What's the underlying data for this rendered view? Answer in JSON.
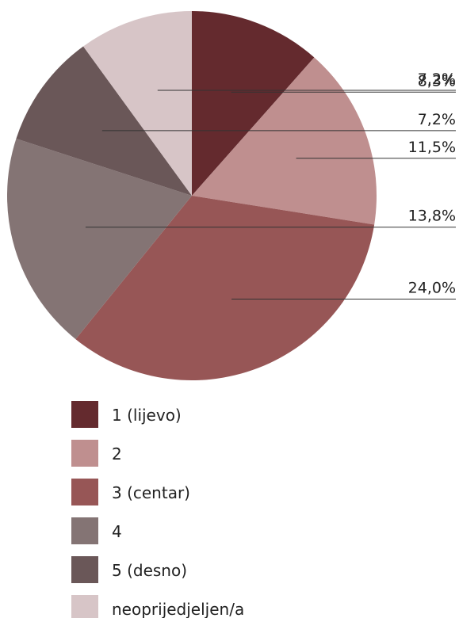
{
  "chart_data": {
    "type": "pie",
    "categories": [
      "1 (lijevo)",
      "2",
      "3 (centar)",
      "4",
      "5 (desno)",
      "neoprijedjeljen/a"
    ],
    "values": [
      8.3,
      11.5,
      24.0,
      13.8,
      7.2,
      7.2
    ],
    "value_labels": [
      "8,3%",
      "11,5%",
      "24,0%",
      "13,8%",
      "7,2%",
      "7,2%"
    ],
    "colors": [
      "#642a2e",
      "#bf8f8f",
      "#975656",
      "#847474",
      "#6a5758",
      "#d7c5c7"
    ],
    "legend": "bottom"
  }
}
